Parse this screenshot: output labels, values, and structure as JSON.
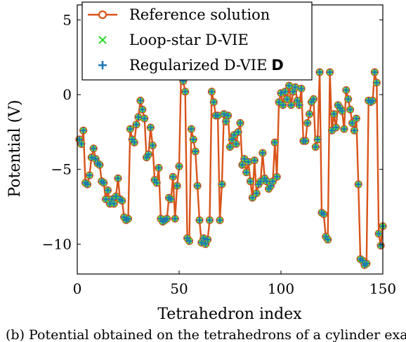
{
  "caption": "(b) Potential obtained on the tetrahedrons of a cylinder example showing",
  "chart_data": {
    "type": "line",
    "xlabel": "Tetrahedron index",
    "ylabel": "Potential (V)",
    "xlim": [
      0,
      150
    ],
    "ylim": [
      -12,
      6
    ],
    "xticks": [
      0,
      50,
      100,
      150
    ],
    "yticks": [
      5,
      0,
      -5,
      -10
    ],
    "grid": false,
    "legend_position": "top-left",
    "colors": {
      "reference": "#d95319",
      "loop_star": "#33dd33",
      "regularized": "#1f77b4"
    },
    "legend": [
      {
        "label": "Reference solution",
        "marker": "line-circle"
      },
      {
        "label": "Loop-star D-VIE",
        "marker": "x"
      },
      {
        "label": "Regularized D-VIE",
        "suffix": "D",
        "marker": "plus"
      }
    ],
    "series": [
      {
        "name": "Reference solution",
        "x": [
          1,
          2,
          3,
          4,
          5,
          6,
          7,
          8,
          9,
          10,
          11,
          12,
          13,
          14,
          15,
          16,
          17,
          18,
          19,
          20,
          21,
          22,
          23,
          24,
          25,
          26,
          27,
          28,
          29,
          30,
          31,
          32,
          33,
          34,
          35,
          36,
          37,
          38,
          39,
          40,
          41,
          42,
          43,
          44,
          45,
          46,
          47,
          48,
          49,
          50,
          51,
          52,
          53,
          54,
          55,
          56,
          57,
          58,
          59,
          60,
          61,
          62,
          63,
          64,
          65,
          66,
          67,
          68,
          69,
          70,
          71,
          72,
          73,
          74,
          75,
          76,
          77,
          78,
          79,
          80,
          81,
          82,
          83,
          84,
          85,
          86,
          87,
          88,
          89,
          90,
          91,
          92,
          93,
          94,
          95,
          96,
          97,
          98,
          99,
          100,
          101,
          102,
          103,
          104,
          105,
          106,
          107,
          108,
          109,
          110,
          111,
          112,
          113,
          114,
          115,
          116,
          117,
          118,
          119,
          120,
          121,
          122,
          123,
          124,
          125,
          126,
          127,
          128,
          129,
          130,
          131,
          132,
          133,
          134,
          135,
          136,
          137,
          138,
          139,
          140,
          141,
          142,
          143,
          144,
          145,
          146,
          147,
          148,
          149,
          150
        ],
        "y": [
          -3.0,
          -3.3,
          -2.4,
          -5.9,
          -6.0,
          -5.4,
          -4.2,
          -3.6,
          -4.3,
          -4.6,
          -4.7,
          -5.8,
          -5.9,
          -7.0,
          -6.4,
          -7.3,
          -7.0,
          -7.3,
          -6.8,
          -5.6,
          -7.0,
          -7.1,
          -8.2,
          -8.4,
          -8.3,
          -2.3,
          -3.0,
          -3.2,
          -2.0,
          -1.5,
          -0.4,
          -1.0,
          -1.6,
          -4.2,
          -4.0,
          -2.2,
          -3.4,
          -5.7,
          -5.9,
          -4.9,
          -8.3,
          -8.5,
          -8.4,
          -8.3,
          -6.9,
          -7.0,
          -5.5,
          -8.3,
          -6.1,
          -4.8,
          1.5,
          0.9,
          0.2,
          -9.6,
          -9.8,
          -2.3,
          -3.0,
          -3.8,
          -6.1,
          -8.4,
          -9.9,
          -9.6,
          -10.0,
          -9.7,
          -8.4,
          0.2,
          -0.5,
          -1.4,
          -1.4,
          -8.4,
          -6.0,
          -1.3,
          -1.8,
          -1.4,
          -3.5,
          -3.0,
          -2.7,
          -3.3,
          -2.5,
          -1.9,
          -4.7,
          -4.3,
          -5.2,
          -4.5,
          -5.8,
          -6.9,
          -4.4,
          -6.6,
          -6.0,
          -5.8,
          -3.9,
          -5.6,
          -5.8,
          -6.3,
          -6.1,
          -5.8,
          -3.2,
          -5.5,
          -0.5,
          0.1,
          -0.7,
          0.2,
          -0.3,
          0.6,
          -0.7,
          0.2,
          0.5,
          -0.4,
          -0.7,
          0.4,
          -3.1,
          -3.1,
          -1.9,
          -1.3,
          -0.5,
          -0.3,
          -3.5,
          -3.0,
          1.5,
          -7.9,
          -8.0,
          -9.5,
          -9.7,
          1.5,
          -2.4,
          -1.3,
          -2.2,
          -0.7,
          -0.9,
          -1.1,
          -2.3,
          0.3,
          -0.3,
          -1.0,
          -1.9,
          -2.4,
          -1.6,
          -6.0,
          -11.0,
          -11.1,
          -11.4,
          -11.3,
          -0.4,
          -0.5,
          -0.4,
          1.5,
          0.8,
          -9.3,
          -10.1,
          -8.8
        ]
      },
      {
        "name": "Loop-star D-VIE",
        "same_as": "Reference solution"
      },
      {
        "name": "Regularized D-VIE D",
        "same_as": "Reference solution"
      }
    ]
  }
}
